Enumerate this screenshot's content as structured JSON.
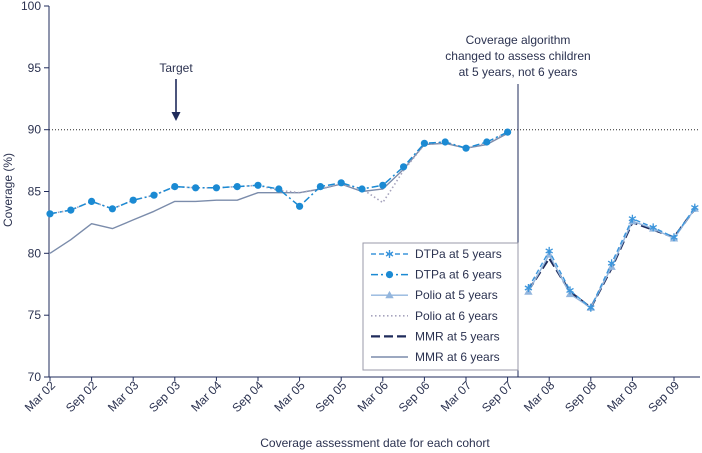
{
  "chart_data": {
    "type": "line",
    "xlabel": "Coverage assessment date for each cohort",
    "ylabel": "Coverage (%)",
    "ylim": [
      70,
      100
    ],
    "yticks": [
      70,
      75,
      80,
      85,
      90,
      95,
      100
    ],
    "xticks": [
      "Mar 02",
      "Sep 02",
      "Mar 03",
      "Sep 03",
      "Mar 04",
      "Sep 04",
      "Mar 05",
      "Sep 05",
      "Mar 06",
      "Sep 06",
      "Mar 07",
      "Sep 07",
      "Mar 08",
      "Sep 08",
      "Mar 09",
      "Sep 09"
    ],
    "x": [
      "Mar 02",
      "Jun 02",
      "Sep 02",
      "Dec 02",
      "Mar 03",
      "Jun 03",
      "Sep 03",
      "Dec 03",
      "Mar 04",
      "Jun 04",
      "Sep 04",
      "Dec 04",
      "Mar 05",
      "Jun 05",
      "Sep 05",
      "Dec 05",
      "Mar 06",
      "Jun 06",
      "Sep 06",
      "Dec 06",
      "Mar 07",
      "Jun 07",
      "Sep 07",
      "Dec 07",
      "Mar 08",
      "Jun 08",
      "Sep 08",
      "Dec 08",
      "Mar 09",
      "Jun 09",
      "Sep 09",
      "Dec 09"
    ],
    "grid": false,
    "legend_position": "lower-center-right",
    "target": {
      "value": 90,
      "label": "Target"
    },
    "annotation": {
      "lines": [
        "Coverage algorithm",
        "changed to assess children",
        "at 5 years, not 6 years"
      ]
    },
    "series": [
      {
        "name": "DTPa at 5 years",
        "color": "#3d96dc",
        "values": [
          null,
          null,
          null,
          null,
          null,
          null,
          null,
          null,
          null,
          null,
          null,
          null,
          null,
          null,
          null,
          null,
          null,
          null,
          null,
          null,
          null,
          null,
          null,
          77.2,
          80.2,
          77.0,
          75.6,
          79.2,
          82.8,
          82.1,
          81.3,
          83.7
        ]
      },
      {
        "name": "DTPa at 6 years",
        "color": "#1b8ad3",
        "values": [
          83.2,
          83.5,
          84.2,
          83.6,
          84.3,
          84.7,
          85.4,
          85.3,
          85.3,
          85.4,
          85.5,
          85.2,
          83.8,
          85.4,
          85.7,
          85.2,
          85.5,
          87.0,
          88.9,
          89.0,
          88.5,
          89.0,
          89.8,
          null,
          null,
          null,
          null,
          null,
          null,
          null,
          null,
          null
        ]
      },
      {
        "name": "Polio at 5 years",
        "color": "#93b6de",
        "values": [
          null,
          null,
          null,
          null,
          null,
          null,
          null,
          null,
          null,
          null,
          null,
          null,
          null,
          null,
          null,
          null,
          null,
          null,
          null,
          null,
          null,
          null,
          null,
          76.9,
          79.9,
          76.7,
          75.6,
          78.9,
          82.6,
          82.0,
          81.2,
          83.6
        ]
      },
      {
        "name": "Polio at 6 years",
        "color": "#a6a3bd",
        "values": [
          83.2,
          83.5,
          84.2,
          83.6,
          84.3,
          84.7,
          85.4,
          85.3,
          85.3,
          85.4,
          85.5,
          85.1,
          84.9,
          85.2,
          85.6,
          85.2,
          84.1,
          86.7,
          88.8,
          89.0,
          88.5,
          88.9,
          89.8,
          null,
          null,
          null,
          null,
          null,
          null,
          null,
          null,
          null
        ]
      },
      {
        "name": "MMR at 5 years",
        "color": "#1f2b5b",
        "values": [
          null,
          null,
          null,
          null,
          null,
          null,
          null,
          null,
          null,
          null,
          null,
          null,
          null,
          null,
          null,
          null,
          null,
          null,
          null,
          null,
          null,
          null,
          null,
          77.0,
          79.6,
          76.9,
          75.6,
          78.8,
          82.5,
          81.9,
          81.3,
          83.6
        ]
      },
      {
        "name": "MMR at 6 years",
        "color": "#7b8cab",
        "values": [
          80.0,
          81.1,
          82.4,
          82.0,
          82.7,
          83.4,
          84.2,
          84.2,
          84.3,
          84.3,
          84.9,
          84.9,
          84.9,
          85.2,
          85.6,
          85.0,
          85.2,
          86.8,
          88.8,
          88.9,
          88.5,
          88.8,
          89.7,
          null,
          null,
          null,
          null,
          null,
          null,
          null,
          null,
          null
        ]
      }
    ]
  }
}
